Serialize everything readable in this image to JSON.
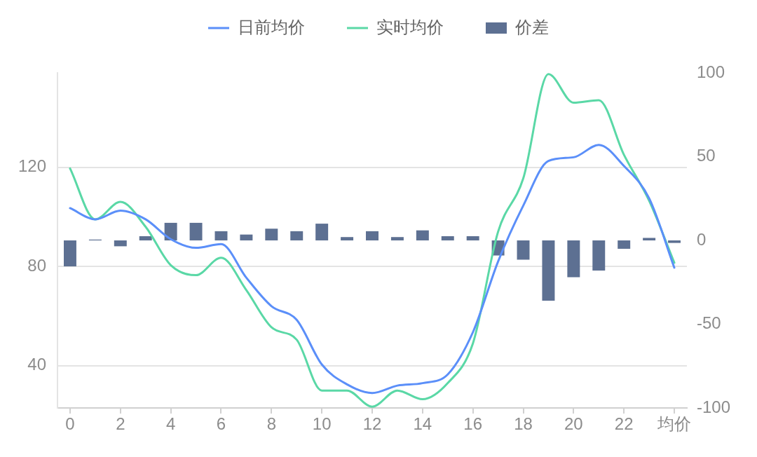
{
  "chart_data": {
    "type": "line",
    "categories": [
      "0",
      null,
      "2",
      null,
      "4",
      null,
      "6",
      null,
      "8",
      null,
      "10",
      null,
      "12",
      null,
      "14",
      null,
      "16",
      null,
      "18",
      null,
      "20",
      null,
      "22",
      null,
      "均价"
    ],
    "series": [
      {
        "name": "日前均价",
        "color": "#5b8ff9",
        "values": [
          103.5,
          99,
          102.5,
          99,
          91,
          87.5,
          89,
          75.5,
          64,
          58.5,
          40.5,
          32.5,
          29,
          32,
          33,
          36.5,
          53.5,
          82,
          104.5,
          122.5,
          124,
          129,
          120.5,
          107.5,
          79.5
        ]
      },
      {
        "name": "实时均价",
        "color": "#5ad8a6",
        "values": [
          119.5,
          99,
          106,
          96,
          80.5,
          76.5,
          83.5,
          70.5,
          55.5,
          50.5,
          30,
          30,
          23.5,
          30,
          26.5,
          33,
          49,
          94,
          115.5,
          157.5,
          146,
          147,
          125,
          106.5,
          81.5
        ]
      },
      {
        "name": "价差",
        "type": "bar",
        "axis": "y2",
        "color": "#5d7092",
        "values": [
          -15.5,
          0.5,
          -3.5,
          2.5,
          10.5,
          10.5,
          5.5,
          3.5,
          7,
          5.5,
          10,
          2,
          5.5,
          2,
          6,
          2.5,
          2.5,
          -9,
          -11.5,
          -36,
          -22,
          -18,
          -5,
          1.5,
          -1.5
        ]
      }
    ],
    "ylim": [
      23,
      158
    ],
    "yticks": [
      40,
      80,
      120
    ],
    "y2lim": [
      -100,
      100
    ],
    "y2ticks": [
      -100,
      -50,
      0,
      50,
      100
    ],
    "grid": "y",
    "legend": "top",
    "marker": "none"
  }
}
